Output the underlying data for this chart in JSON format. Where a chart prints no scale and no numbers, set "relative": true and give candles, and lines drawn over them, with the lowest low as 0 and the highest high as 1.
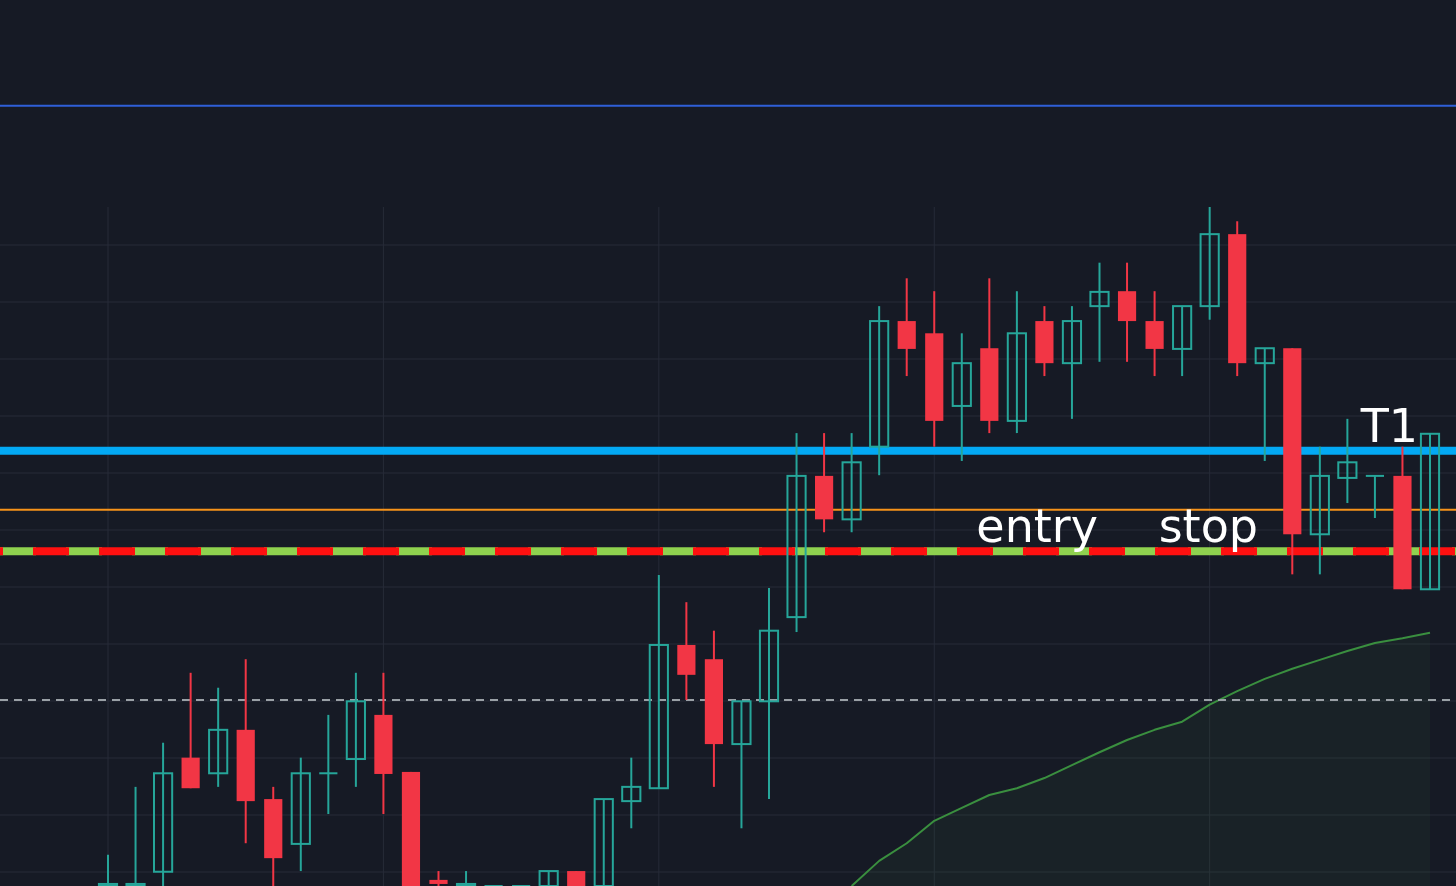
{
  "chart_data": {
    "type": "candlestick",
    "relative": true,
    "grid": true,
    "categories": [
      null,
      null,
      null,
      null,
      null,
      null,
      null,
      null,
      null,
      null,
      null,
      null,
      null,
      null,
      null,
      null,
      null,
      null,
      null,
      null,
      null,
      null,
      null,
      null,
      null,
      null,
      null,
      null,
      null,
      null,
      null,
      null,
      null,
      null,
      null,
      null,
      null,
      null,
      null,
      null,
      null,
      null,
      null,
      null,
      null,
      null,
      null,
      null,
      null
    ],
    "ohlc": [
      [
        0,
        0.046,
        0,
        0.003
      ],
      [
        0,
        0.146,
        0,
        0.003
      ],
      [
        0.021,
        0.211,
        0,
        0.166
      ],
      [
        0.189,
        0.314,
        0.144,
        0.144
      ],
      [
        0.166,
        0.292,
        0.146,
        0.23
      ],
      [
        0.23,
        0.334,
        0.063,
        0.125
      ],
      [
        0.128,
        0.146,
        0,
        0.041
      ],
      [
        0.062,
        0.189,
        0.022,
        0.166
      ],
      [
        0.166,
        0.252,
        0.106,
        0.166
      ],
      [
        0.187,
        0.314,
        0.146,
        0.272
      ],
      [
        0.252,
        0.314,
        0.106,
        0.165
      ],
      [
        0.168,
        0.168,
        0,
        0
      ],
      [
        0.009,
        0.022,
        0,
        0.003
      ],
      [
        0,
        0.022,
        0,
        0.003
      ],
      [
        0,
        0,
        0,
        0
      ],
      [
        0,
        0,
        0,
        0
      ],
      [
        0,
        0.022,
        0,
        0.022
      ],
      [
        0.022,
        0.022,
        0,
        0
      ],
      [
        0,
        0.128,
        0,
        0.128
      ],
      [
        0.125,
        0.189,
        0.085,
        0.146
      ],
      [
        0.144,
        0.458,
        0.144,
        0.355
      ],
      [
        0.355,
        0.418,
        0.274,
        0.311
      ],
      [
        0.334,
        0.376,
        0.146,
        0.209
      ],
      [
        0.209,
        0.272,
        0.085,
        0.272
      ],
      [
        0.272,
        0.439,
        0.128,
        0.376
      ],
      [
        0.396,
        0.667,
        0.374,
        0.604
      ],
      [
        0.604,
        0.667,
        0.521,
        0.54
      ],
      [
        0.54,
        0.667,
        0.521,
        0.624
      ],
      [
        0.647,
        0.854,
        0.605,
        0.832
      ],
      [
        0.832,
        0.895,
        0.751,
        0.791
      ],
      [
        0.814,
        0.876,
        0.647,
        0.685
      ],
      [
        0.707,
        0.814,
        0.626,
        0.77
      ],
      [
        0.792,
        0.895,
        0.667,
        0.685
      ],
      [
        0.685,
        0.876,
        0.667,
        0.814
      ],
      [
        0.832,
        0.854,
        0.751,
        0.77
      ],
      [
        0.77,
        0.854,
        0.688,
        0.832
      ],
      [
        0.854,
        0.918,
        0.772,
        0.875
      ],
      [
        0.876,
        0.918,
        0.772,
        0.832
      ],
      [
        0.832,
        0.876,
        0.751,
        0.791
      ],
      [
        0.791,
        0.854,
        0.751,
        0.854
      ],
      [
        0.854,
        1,
        0.834,
        0.96
      ],
      [
        0.96,
        0.979,
        0.751,
        0.77
      ],
      [
        0.77,
        0.792,
        0.626,
        0.792
      ],
      [
        0.792,
        0.792,
        0.459,
        0.518
      ],
      [
        0.518,
        0.647,
        0.459,
        0.604
      ],
      [
        0.601,
        0.688,
        0.564,
        0.624
      ],
      [
        0.604,
        0.604,
        0.542,
        0.604
      ],
      [
        0.604,
        0.647,
        0.437,
        0.437
      ],
      [
        0.437,
        0.666,
        0.437,
        0.666
      ]
    ],
    "series": [
      {
        "type": "area",
        "color": "#3a8f3f",
        "values": [
          null,
          null,
          null,
          null,
          null,
          null,
          null,
          null,
          null,
          null,
          null,
          null,
          null,
          null,
          null,
          null,
          null,
          null,
          null,
          null,
          null,
          null,
          null,
          null,
          null,
          null,
          null,
          0,
          0.037,
          0.063,
          0.096,
          0.115,
          0.134,
          0.144,
          0.159,
          0.178,
          0.197,
          0.215,
          0.23,
          0.242,
          0.267,
          0.287,
          0.305,
          0.32,
          0.333,
          0.346,
          0.358,
          0.365,
          0.373
        ]
      }
    ],
    "ref_lines": [
      {
        "axis": "y",
        "value": 1.149,
        "color": "#2f5fd8",
        "line_style": "solid"
      },
      {
        "axis": "y",
        "value": 0.641,
        "label": "T1",
        "color": "#03a9f4",
        "line_style": "solid"
      },
      {
        "axis": "y",
        "value": 0.554,
        "color": "#f7931a",
        "line_style": "solid"
      },
      {
        "axis": "y",
        "value": 0.493,
        "label": "entry",
        "color": "#8fd14f",
        "line_style": "dashed"
      },
      {
        "axis": "y",
        "value": 0.493,
        "label": "stop",
        "color": "#ff1010",
        "line_style": "dashed"
      },
      {
        "axis": "y",
        "value": 0.274,
        "color": "#9aa0a6",
        "line_style": "dashed"
      }
    ]
  }
}
